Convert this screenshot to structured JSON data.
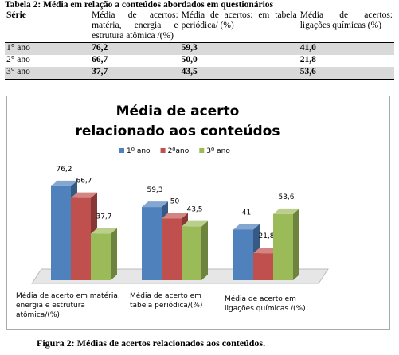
{
  "table": {
    "title": "Tabela 2: Média em relação a conteúdos abordados em questionários",
    "header": [
      "Série",
      "Média de acertos: matéria, energia e estrutura atômica /(%)",
      "Média de acertos: em tabela periódica/ (%)",
      "Média de acertos: ligações químicas (%)"
    ],
    "rows": [
      [
        "1° ano",
        "76,2",
        "59,3",
        "41,0"
      ],
      [
        "2° ano",
        "66,7",
        "50,0",
        "21,8"
      ],
      [
        "3° ano",
        "37,7",
        "43,5",
        "53,6"
      ]
    ]
  },
  "chart_data": {
    "type": "bar",
    "title": "Média de acerto relacionado aos conteúdos",
    "categories": [
      "Média de acerto em matéria, energia e estrutura atômica/(%)",
      "Média de acerto em tabela periódica/(%)",
      "Média de acerto em ligações químicas /(%)"
    ],
    "legend": "top",
    "series": [
      {
        "name": "1º ano",
        "color": "#4f81bd",
        "values": [
          76.2,
          59.3,
          41
        ],
        "value_labels": [
          "76,2",
          "59,3",
          "41"
        ]
      },
      {
        "name": "2ºano",
        "color": "#c0504d",
        "values": [
          66.7,
          50,
          21.8
        ],
        "value_labels": [
          "66,7",
          "50",
          "21,8"
        ]
      },
      {
        "name": "3º ano",
        "color": "#9bbb59",
        "values": [
          37.7,
          43.5,
          53.6
        ],
        "value_labels": [
          "37,7",
          "43,5",
          "53,6"
        ]
      }
    ]
  },
  "figure_caption": "Figura 2: Médias de acertos relacionados aos conteúdos."
}
